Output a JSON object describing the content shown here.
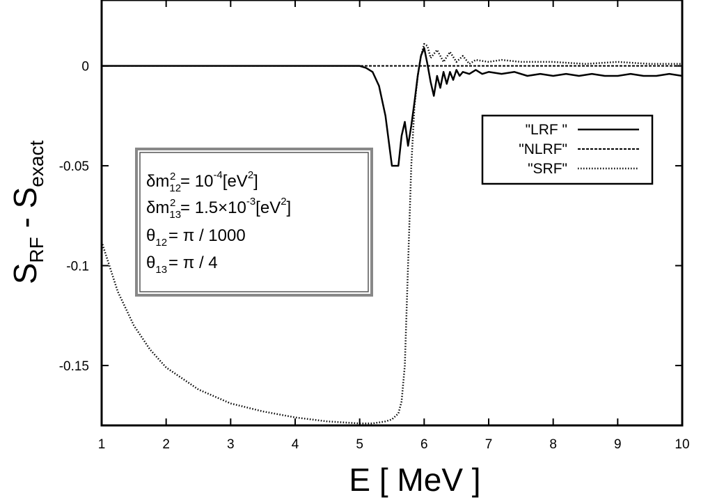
{
  "chart_data": {
    "type": "line",
    "xlabel": "E [ MeV ]",
    "ylabel": "S_RF - S_exact",
    "ylabel_main": "S",
    "ylabel_sub1": "RF",
    "ylabel_mid": " - S",
    "ylabel_sub2": "exact",
    "xlim": [
      1,
      10
    ],
    "ylim": [
      -0.18,
      0.033
    ],
    "x_ticks": [
      1,
      2,
      3,
      4,
      5,
      6,
      7,
      8,
      9,
      10
    ],
    "x_tick_labels": [
      "1",
      "2",
      "3",
      "4",
      "5",
      "6",
      "7",
      "8",
      "9",
      "10"
    ],
    "y_ticks": [
      0,
      -0.05,
      -0.1,
      -0.15
    ],
    "y_tick_labels": [
      "0",
      "-0.05",
      "-0.1",
      "-0.15"
    ],
    "grid": false,
    "legend_position": "upper-right",
    "series": [
      {
        "name": "\"LRF \"",
        "style": "solid",
        "x": [
          1,
          2,
          3,
          4,
          5,
          5.1,
          5.2,
          5.3,
          5.4,
          5.5,
          5.6,
          5.65,
          5.7,
          5.75,
          5.8,
          5.85,
          5.9,
          5.95,
          6.0,
          6.05,
          6.1,
          6.15,
          6.2,
          6.25,
          6.3,
          6.35,
          6.4,
          6.45,
          6.5,
          6.55,
          6.6,
          6.7,
          6.8,
          6.9,
          7.0,
          7.2,
          7.4,
          7.6,
          7.8,
          8.0,
          8.2,
          8.4,
          8.6,
          8.8,
          9.0,
          9.2,
          9.4,
          9.6,
          9.8,
          10.0
        ],
        "y": [
          0,
          0,
          0,
          0,
          0,
          -0.001,
          -0.003,
          -0.01,
          -0.025,
          -0.05,
          -0.05,
          -0.035,
          -0.028,
          -0.04,
          -0.03,
          -0.018,
          -0.005,
          0.005,
          0.009,
          0.001,
          -0.008,
          -0.015,
          -0.005,
          -0.011,
          -0.003,
          -0.009,
          -0.003,
          -0.007,
          -0.002,
          -0.005,
          -0.003,
          -0.004,
          -0.002,
          -0.004,
          -0.003,
          -0.004,
          -0.003,
          -0.005,
          -0.004,
          -0.005,
          -0.004,
          -0.005,
          -0.004,
          -0.005,
          -0.005,
          -0.004,
          -0.005,
          -0.005,
          -0.004,
          -0.005
        ]
      },
      {
        "name": "\"NLRF\"",
        "style": "dashed",
        "x": [
          1,
          10
        ],
        "y": [
          0,
          0
        ]
      },
      {
        "name": "\"SRF\"",
        "style": "dotted",
        "x": [
          1,
          1.25,
          1.5,
          1.75,
          2,
          2.5,
          3,
          3.5,
          4,
          4.5,
          5,
          5.2,
          5.4,
          5.5,
          5.6,
          5.65,
          5.7,
          5.75,
          5.8,
          5.85,
          5.9,
          5.95,
          6.0,
          6.05,
          6.1,
          6.2,
          6.3,
          6.4,
          6.5,
          6.6,
          6.7,
          6.8,
          7.0,
          7.2,
          7.5,
          8.0,
          8.5,
          9.0,
          9.5,
          10.0
        ],
        "y": [
          -0.088,
          -0.113,
          -0.13,
          -0.142,
          -0.151,
          -0.162,
          -0.169,
          -0.173,
          -0.176,
          -0.178,
          -0.179,
          -0.179,
          -0.178,
          -0.177,
          -0.174,
          -0.168,
          -0.15,
          -0.1,
          -0.05,
          -0.02,
          -0.005,
          0.005,
          0.011,
          0.01,
          0.004,
          0.008,
          0.002,
          0.007,
          0.002,
          0.005,
          0.001,
          0.003,
          0.002,
          0.003,
          0.002,
          0.002,
          0.001,
          0.002,
          0.001,
          0.001
        ]
      }
    ],
    "annotation": {
      "lines": [
        {
          "prefix": "δm",
          "sub": "12",
          "sup": "2",
          "mid": " = 10",
          "exp": "-4",
          "unit": "[eV",
          "unit_sup": "2",
          "end": "]"
        },
        {
          "prefix": "δm",
          "sub": "13",
          "sup": "2",
          "mid": " = 1.5×10",
          "exp": "-3",
          "unit": "[eV",
          "unit_sup": "2",
          "end": "]"
        },
        {
          "prefix": "θ",
          "sub": "12",
          "text": "=  π / 1000"
        },
        {
          "prefix": "θ",
          "sub": "13",
          "text": "=  π / 4"
        }
      ]
    }
  }
}
